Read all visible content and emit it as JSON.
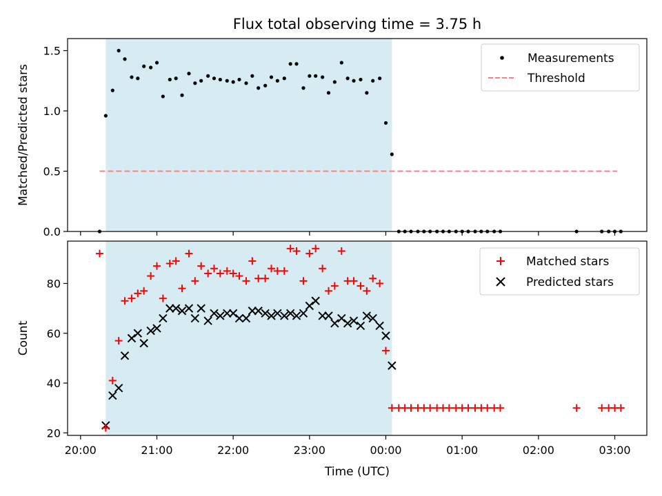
{
  "title": "Flux total observing time = 3.75 h",
  "xlabel": "Time (UTC)",
  "x_tick_labels": [
    "20:00",
    "21:00",
    "22:00",
    "23:00",
    "00:00",
    "01:00",
    "02:00",
    "03:00"
  ],
  "colors": {
    "shade": "#add8e6",
    "measurement": "#000000",
    "threshold": "#ff7f7f",
    "matched": "#ff0000",
    "predicted": "#000000"
  },
  "chart_data": [
    {
      "type": "scatter",
      "ylabel": "Matched/Predicted stars",
      "ylim": [
        0,
        1.6
      ],
      "y_ticks": [
        0.0,
        0.5,
        1.0,
        1.5
      ],
      "xlim_hours": [
        19.83,
        27.42
      ],
      "shaded_span_hours": [
        20.33,
        24.08
      ],
      "legend_position": "top-right",
      "series": [
        {
          "name": "Measurements",
          "marker": "dot",
          "x": [
            20.25,
            20.33,
            20.42,
            20.5,
            20.58,
            20.67,
            20.75,
            20.83,
            20.92,
            21,
            21.08,
            21.17,
            21.25,
            21.33,
            21.42,
            21.5,
            21.58,
            21.67,
            21.75,
            21.83,
            21.92,
            22,
            22.08,
            22.17,
            22.25,
            22.33,
            22.42,
            22.5,
            22.58,
            22.67,
            22.75,
            22.83,
            22.92,
            23,
            23.08,
            23.17,
            23.25,
            23.33,
            23.42,
            23.5,
            23.58,
            23.67,
            23.75,
            23.83,
            23.92,
            24,
            24.08,
            24.17,
            24.25,
            24.33,
            24.42,
            24.5,
            24.58,
            24.67,
            24.75,
            24.83,
            24.92,
            25,
            25.08,
            25.17,
            25.25,
            25.33,
            25.42,
            25.5,
            26.5,
            26.83,
            26.92,
            27,
            27.08
          ],
          "y": [
            0,
            0.96,
            1.17,
            1.5,
            1.43,
            1.28,
            1.27,
            1.37,
            1.36,
            1.4,
            1.12,
            1.26,
            1.27,
            1.13,
            1.31,
            1.23,
            1.25,
            1.29,
            1.27,
            1.26,
            1.25,
            1.24,
            1.26,
            1.23,
            1.29,
            1.19,
            1.21,
            1.28,
            1.25,
            1.27,
            1.39,
            1.39,
            1.19,
            1.29,
            1.29,
            1.28,
            1.15,
            1.24,
            1.4,
            1.27,
            1.25,
            1.26,
            1.15,
            1.25,
            1.27,
            0.9,
            0.64,
            0,
            0,
            0,
            0,
            0,
            0,
            0,
            0,
            0,
            0,
            0,
            0,
            0,
            0,
            0,
            0,
            0,
            0,
            0,
            0,
            0,
            0
          ]
        },
        {
          "name": "Threshold",
          "marker": "dashed-line",
          "x": [
            20.25,
            27.03
          ],
          "y": [
            0.5,
            0.5
          ]
        }
      ]
    },
    {
      "type": "scatter",
      "ylabel": "Count",
      "ylim": [
        19,
        97
      ],
      "y_ticks": [
        20,
        40,
        60,
        80
      ],
      "xlim_hours": [
        19.83,
        27.42
      ],
      "shaded_span_hours": [
        20.33,
        24.08
      ],
      "legend_position": "top-right",
      "series": [
        {
          "name": "Matched stars",
          "marker": "plus",
          "x": [
            20.25,
            20.33,
            20.42,
            20.5,
            20.58,
            20.67,
            20.75,
            20.83,
            20.92,
            21,
            21.08,
            21.17,
            21.25,
            21.33,
            21.42,
            21.5,
            21.58,
            21.67,
            21.75,
            21.83,
            21.92,
            22,
            22.08,
            22.17,
            22.25,
            22.33,
            22.42,
            22.5,
            22.58,
            22.67,
            22.75,
            22.83,
            22.92,
            23,
            23.08,
            23.17,
            23.25,
            23.33,
            23.42,
            23.5,
            23.58,
            23.67,
            23.75,
            23.83,
            23.92,
            24,
            24.08,
            24.17,
            24.25,
            24.33,
            24.42,
            24.5,
            24.58,
            24.67,
            24.75,
            24.83,
            24.92,
            25,
            25.08,
            25.17,
            25.25,
            25.33,
            25.42,
            25.5,
            26.5,
            26.83,
            26.92,
            27,
            27.08
          ],
          "y": [
            92,
            22,
            41,
            57,
            73,
            74,
            76,
            77,
            83,
            87,
            74,
            88,
            89,
            78,
            92,
            81,
            87,
            84,
            86,
            84,
            85,
            84,
            83,
            81,
            89,
            82,
            82,
            86,
            85,
            85,
            94,
            93,
            81,
            92,
            94,
            86,
            77,
            79,
            93,
            81,
            81,
            79,
            77,
            82,
            80,
            53,
            30,
            30,
            30,
            30,
            30,
            30,
            30,
            30,
            30,
            30,
            30,
            30,
            30,
            30,
            30,
            30,
            30,
            30,
            30,
            30,
            30,
            30,
            30
          ]
        },
        {
          "name": "Predicted stars",
          "marker": "x",
          "x": [
            20.33,
            20.42,
            20.5,
            20.58,
            20.67,
            20.75,
            20.83,
            20.92,
            21,
            21.08,
            21.17,
            21.25,
            21.33,
            21.42,
            21.5,
            21.58,
            21.67,
            21.75,
            21.83,
            21.92,
            22,
            22.08,
            22.17,
            22.25,
            22.33,
            22.42,
            22.5,
            22.58,
            22.67,
            22.75,
            22.83,
            22.92,
            23,
            23.08,
            23.17,
            23.25,
            23.33,
            23.42,
            23.5,
            23.58,
            23.67,
            23.75,
            23.83,
            23.92,
            24,
            24.08
          ],
          "y": [
            23,
            35,
            38,
            51,
            58,
            60,
            56,
            61,
            62,
            66,
            70,
            70,
            69,
            70,
            66,
            70,
            65,
            68,
            67,
            68,
            68,
            66,
            66,
            69,
            69,
            68,
            67,
            68,
            67,
            68,
            67,
            68,
            71,
            73,
            67,
            67,
            64,
            66,
            64,
            65,
            63,
            67,
            66,
            63,
            59,
            47
          ]
        }
      ]
    }
  ]
}
